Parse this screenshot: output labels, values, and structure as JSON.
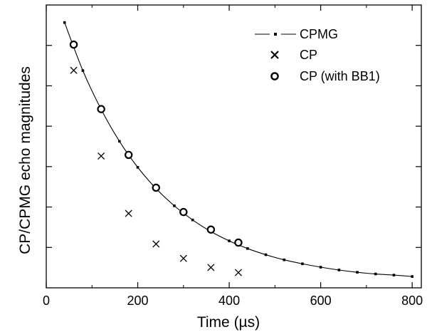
{
  "chart_data": {
    "type": "scatter",
    "xlabel": "Time (µs)",
    "ylabel": "CP/CPMG echo magnitudes",
    "xlim": [
      0,
      820
    ],
    "ylim": [
      0,
      1
    ],
    "x_ticks": [
      0,
      200,
      400,
      600,
      800
    ],
    "x_tick_labels": [
      "0",
      "200",
      "400",
      "600",
      "800"
    ],
    "y_tick_labels_shown": false,
    "legend_position": "top-right",
    "series": [
      {
        "name": "CPMG",
        "style": "line-with-small-square-markers",
        "x": [
          40,
          80,
          120,
          160,
          200,
          240,
          280,
          320,
          360,
          400,
          440,
          480,
          520,
          560,
          600,
          640,
          680,
          720,
          760,
          800
        ],
        "y": [
          0.938,
          0.768,
          0.631,
          0.518,
          0.426,
          0.351,
          0.29,
          0.24,
          0.199,
          0.166,
          0.139,
          0.117,
          0.099,
          0.085,
          0.073,
          0.063,
          0.055,
          0.049,
          0.045,
          0.04
        ]
      },
      {
        "name": "CP",
        "style": "x-marker",
        "x": [
          60,
          120,
          180,
          240,
          300,
          360,
          420
        ],
        "y": [
          0.769,
          0.466,
          0.263,
          0.155,
          0.104,
          0.072,
          0.054
        ]
      },
      {
        "name": "CP (with BB1)",
        "style": "open-circle",
        "x": [
          60,
          120,
          180,
          240,
          300,
          360,
          420
        ],
        "y": [
          0.86,
          0.632,
          0.47,
          0.354,
          0.268,
          0.206,
          0.16
        ]
      }
    ]
  }
}
